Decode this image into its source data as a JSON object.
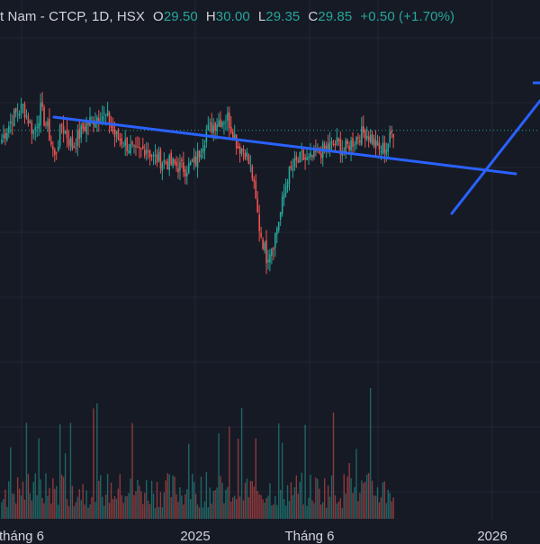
{
  "legend": {
    "symbol_text": "t Nam - CTCP, 1D, HSX",
    "open_label": "O",
    "open_value": "29.50",
    "high_label": "H",
    "high_value": "30.00",
    "low_label": "L",
    "low_value": "29.35",
    "close_label": "C",
    "close_value": "29.85",
    "change_text": "+0.50 (+1.70%)"
  },
  "colors": {
    "background": "#161a25",
    "grid": "#232632",
    "up": "#26a69a",
    "down": "#ef5350",
    "trendline": "#2962ff",
    "price_line": "#26a69a"
  },
  "chart_data": {
    "type": "candlestick",
    "interval": "1D",
    "exchange": "HSX",
    "x_tick_labels": [
      "tháng 6",
      "2025",
      "Tháng 6",
      "2026"
    ],
    "last_close": 29.85,
    "approx_price_range": [
      25.9,
      31.2
    ],
    "trendlines": [
      {
        "name": "resistance",
        "from_price": 30.6,
        "to_price": 29.35
      },
      {
        "name": "breakout",
        "from_price": 28.7,
        "to_price": 31.2
      }
    ],
    "volume_shown": true,
    "grid": true
  }
}
